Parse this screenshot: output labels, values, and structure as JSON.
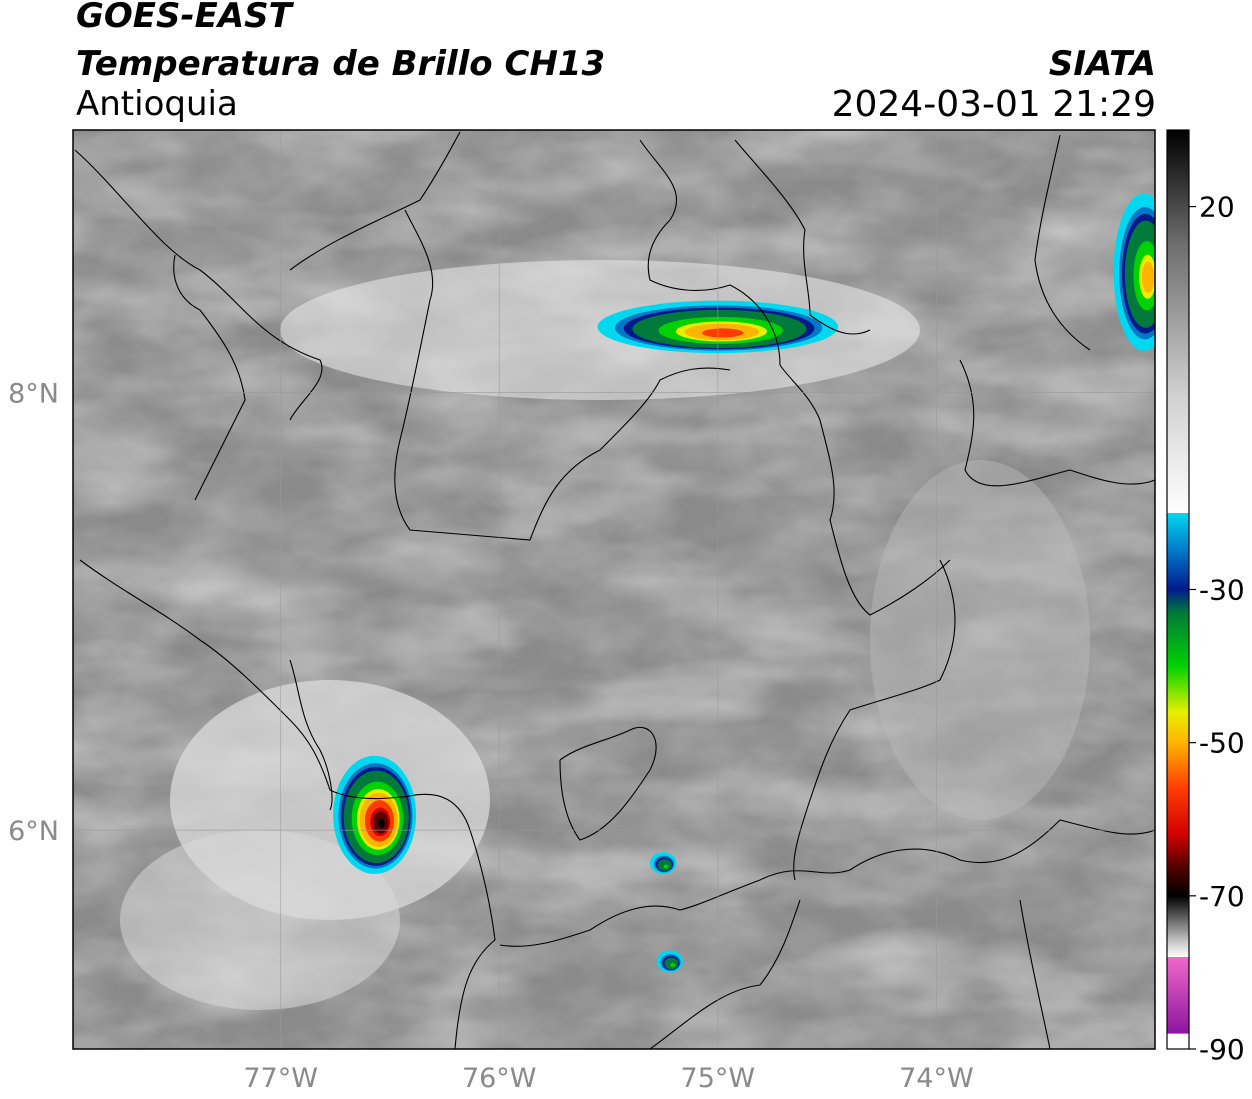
{
  "header": {
    "satellite": "GOES-EAST",
    "product": "Temperatura de Brillo CH13",
    "region": "Antioquia",
    "source": "SIATA",
    "datetime": "2024-03-01 21:29"
  },
  "map": {
    "lon_range": [
      -77.95,
      -73.0
    ],
    "lat_range": [
      5.0,
      9.2
    ],
    "lon_ticks": [
      {
        "value": -77,
        "label": "77°W"
      },
      {
        "value": -76,
        "label": "76°W"
      },
      {
        "value": -75,
        "label": "75°W"
      },
      {
        "value": -74,
        "label": "74°W"
      }
    ],
    "lat_ticks": [
      {
        "value": 8,
        "label": "8°N"
      },
      {
        "value": 6,
        "label": "6°N"
      }
    ],
    "gridlines": true,
    "storms": [
      {
        "name": "storm-urrao",
        "lon": -76.57,
        "lat": 6.07,
        "rx": 0.19,
        "ry": 0.27,
        "min_temp": -72
      },
      {
        "name": "storm-north-band",
        "lon": -75.0,
        "lat": 8.3,
        "rx": 0.55,
        "ry": 0.12,
        "min_temp": -62
      },
      {
        "name": "storm-northeast",
        "lon": -73.05,
        "lat": 8.55,
        "rx": 0.14,
        "ry": 0.36,
        "min_temp": -55
      },
      {
        "name": "cell-central",
        "lon": -75.25,
        "lat": 5.85,
        "rx": 0.06,
        "ry": 0.05,
        "min_temp": -42
      },
      {
        "name": "cell-south",
        "lon": -75.22,
        "lat": 5.4,
        "rx": 0.06,
        "ry": 0.05,
        "min_temp": -42
      }
    ]
  },
  "colorbar": {
    "range": [
      -90,
      30
    ],
    "ticks": [
      {
        "value": 20,
        "label": "20"
      },
      {
        "value": -30,
        "label": "-30"
      },
      {
        "value": -50,
        "label": "-50"
      },
      {
        "value": -70,
        "label": "-70"
      },
      {
        "value": -90,
        "label": "-90"
      }
    ],
    "stops": [
      {
        "value": 30,
        "color": "#000000"
      },
      {
        "value": 15,
        "color": "#6e6e6e"
      },
      {
        "value": -5,
        "color": "#d2d2d2"
      },
      {
        "value": -20,
        "color": "#ffffff"
      },
      {
        "value": -20.01,
        "color": "#00d8f0"
      },
      {
        "value": -25,
        "color": "#0078c8"
      },
      {
        "value": -30,
        "color": "#001a8c"
      },
      {
        "value": -33,
        "color": "#007a3a"
      },
      {
        "value": -40,
        "color": "#00d200"
      },
      {
        "value": -46,
        "color": "#e6f000"
      },
      {
        "value": -50,
        "color": "#ffb400"
      },
      {
        "value": -56,
        "color": "#ff3c00"
      },
      {
        "value": -62,
        "color": "#d20000"
      },
      {
        "value": -66,
        "color": "#5a0000"
      },
      {
        "value": -70,
        "color": "#000000"
      },
      {
        "value": -76,
        "color": "#c8c8c8"
      },
      {
        "value": -78,
        "color": "#ffffff"
      },
      {
        "value": -78.01,
        "color": "#f068c8"
      },
      {
        "value": -88,
        "color": "#8c14a0"
      },
      {
        "value": -88.01,
        "color": "#ffffff"
      }
    ]
  }
}
